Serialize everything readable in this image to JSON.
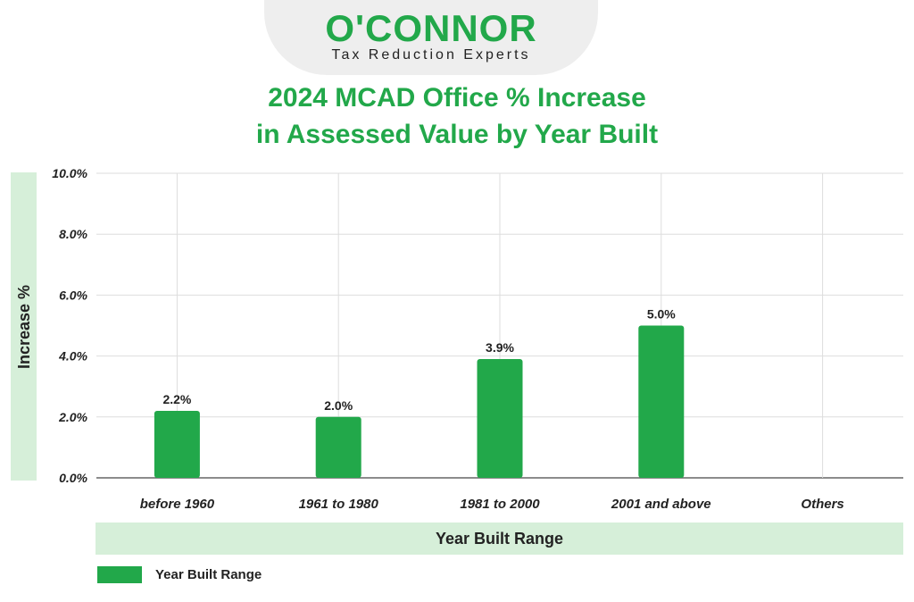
{
  "logo": {
    "name": "O'CONNOR",
    "tagline": "Tax Reduction Experts"
  },
  "colors": {
    "brand": "#22a84a",
    "axis_band": "#d6efd9",
    "grid": "#dddddd"
  },
  "chart_data": {
    "type": "bar",
    "title_line1": "2024 MCAD Office % Increase",
    "title_line2": "in Assessed Value by Year Built",
    "xlabel": "Year Built Range",
    "ylabel": "Increase %",
    "categories": [
      "before 1960",
      "1961 to 1980",
      "1981 to 2000",
      "2001 and above",
      "Others"
    ],
    "series": [
      {
        "name": "Year Built Range",
        "values": [
          2.2,
          2.0,
          3.9,
          5.0,
          null
        ],
        "data_labels": [
          "2.2%",
          "2.0%",
          "3.9%",
          "5.0%",
          ""
        ]
      }
    ],
    "yticks": [
      "0.0%",
      "2.0%",
      "4.0%",
      "6.0%",
      "8.0%",
      "10.0%"
    ],
    "ylim": [
      0,
      10
    ],
    "grid": true,
    "legend": "bottom-left"
  }
}
